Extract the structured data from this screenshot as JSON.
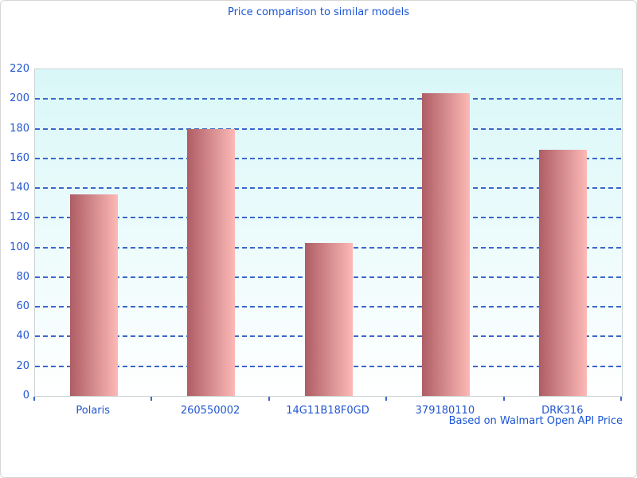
{
  "chart_data": {
    "type": "bar",
    "title": "Price comparison to similar models",
    "categories": [
      "Polaris",
      "260550002",
      "14G11B18F0GD",
      "379180110",
      "DRK316"
    ],
    "values": [
      136,
      180,
      103,
      204,
      166
    ],
    "xlabel": "",
    "ylabel": "",
    "ylim": [
      0,
      220
    ],
    "ytick_step": 20,
    "grid": "horizontal-dashed",
    "legend": "none",
    "footnote": "Based on Walmart Open API Price",
    "colors": {
      "title_text": "#1a55d5",
      "axis_text": "#2256d0",
      "gridline": "#3a68c8",
      "bar_gradient_left": "#ae5d64",
      "bar_gradient_right": "#fcb9b6",
      "plot_bg_top": "#d9f7f8",
      "plot_bg_bottom": "#ffffff",
      "plot_border": "#ccd4d6",
      "page_border": "#d6d6d6"
    }
  }
}
